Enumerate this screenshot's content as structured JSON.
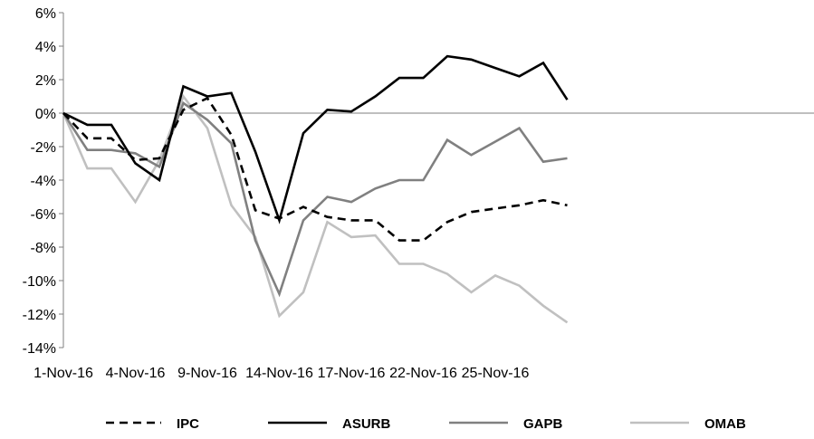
{
  "chart_data": {
    "type": "line",
    "title": "",
    "xlabel": "",
    "ylabel": "",
    "x": [
      "1-Nov-16",
      "2-Nov-16",
      "3-Nov-16",
      "4-Nov-16",
      "7-Nov-16",
      "8-Nov-16",
      "9-Nov-16",
      "10-Nov-16",
      "11-Nov-16",
      "14-Nov-16",
      "15-Nov-16",
      "16-Nov-16",
      "17-Nov-16",
      "18-Nov-16",
      "21-Nov-16",
      "22-Nov-16",
      "23-Nov-16",
      "24-Nov-16",
      "25-Nov-16",
      "28-Nov-16",
      "29-Nov-16",
      "30-Nov-16"
    ],
    "x_tick_labels": [
      "1-Nov-16",
      "4-Nov-16",
      "9-Nov-16",
      "14-Nov-16",
      "17-Nov-16",
      "22-Nov-16",
      "25-Nov-16"
    ],
    "y_tick_labels": [
      "6%",
      "4%",
      "2%",
      "0%",
      "-2%",
      "-4%",
      "-6%",
      "-8%",
      "-10%",
      "-12%",
      "-14%"
    ],
    "ylim": [
      -14,
      6
    ],
    "y_unit": "%",
    "grid": false,
    "legend_position": "bottom",
    "series": [
      {
        "name": "IPC",
        "color": "#000000",
        "dash": "dashed",
        "values": [
          0,
          -1.5,
          -1.5,
          -2.8,
          -2.7,
          0.2,
          0.9,
          -1.3,
          -5.8,
          -6.3,
          -5.6,
          -6.2,
          -6.4,
          -6.4,
          -7.6,
          -7.6,
          -6.5,
          -5.9,
          -5.7,
          -5.5,
          -5.2,
          -5.5
        ]
      },
      {
        "name": "ASURB",
        "color": "#000000",
        "dash": "solid",
        "values": [
          0,
          -0.7,
          -0.7,
          -3.0,
          -4.0,
          1.6,
          1.0,
          1.2,
          -2.3,
          -6.4,
          -1.2,
          0.2,
          0.1,
          1.0,
          2.1,
          2.1,
          3.4,
          3.2,
          2.7,
          2.2,
          3.0,
          0.8
        ]
      },
      {
        "name": "GAPB",
        "color": "#808080",
        "dash": "solid",
        "values": [
          0,
          -2.2,
          -2.2,
          -2.4,
          -3.2,
          0.6,
          -0.4,
          -1.8,
          -7.6,
          -10.8,
          -6.4,
          -5.0,
          -5.3,
          -4.5,
          -4.0,
          -4.0,
          -1.6,
          -2.5,
          -1.7,
          -0.9,
          -2.9,
          -2.7
        ]
      },
      {
        "name": "OMAB",
        "color": "#c0c0c0",
        "dash": "solid",
        "values": [
          0,
          -3.3,
          -3.3,
          -5.3,
          -2.8,
          1.0,
          -0.9,
          -5.5,
          -7.4,
          -12.1,
          -10.7,
          -6.5,
          -7.4,
          -7.3,
          -9.0,
          -9.0,
          -9.6,
          -10.7,
          -9.7,
          -10.3,
          -11.5,
          -12.5
        ]
      }
    ]
  }
}
